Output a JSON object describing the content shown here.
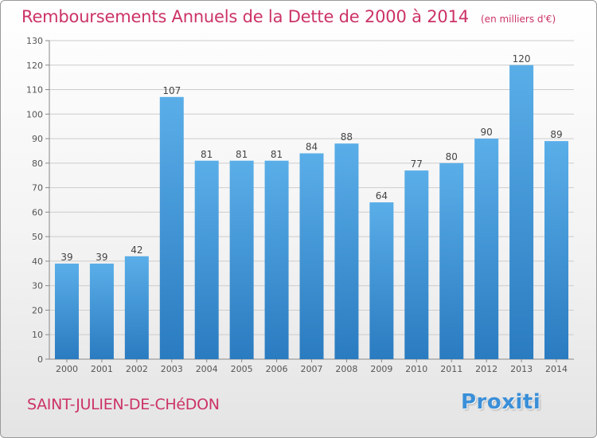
{
  "header": {
    "title": "Remboursements Annuels de la Dette de 2000 à 2014",
    "subtitle": "(en milliers d'€)"
  },
  "footer": {
    "location": "SAINT-JULIEN-DE-CHéDON",
    "brand": "Proxiti"
  },
  "colors": {
    "bar_top": "#5aaee8",
    "bar_bottom": "#2a7bc0",
    "title": "#cc3366",
    "grid": "#cccccc"
  },
  "chart_data": {
    "type": "bar",
    "title": "Remboursements Annuels de la Dette de 2000 à 2014",
    "subtitle": "(en milliers d'€)",
    "categories": [
      "2000",
      "2001",
      "2002",
      "2003",
      "2004",
      "2005",
      "2006",
      "2007",
      "2008",
      "2009",
      "2010",
      "2011",
      "2012",
      "2013",
      "2014"
    ],
    "values": [
      39,
      39,
      42,
      107,
      81,
      81,
      81,
      84,
      88,
      64,
      77,
      80,
      90,
      120,
      89
    ],
    "data_labels": [
      "39",
      "39",
      "42",
      "107",
      "81",
      "81",
      "81",
      "84",
      "88",
      "64",
      "77",
      "80",
      "90",
      "120",
      "89"
    ],
    "xlabel": "",
    "ylabel": "",
    "ylim": [
      0,
      130
    ],
    "yticks": [
      0,
      10,
      20,
      30,
      40,
      50,
      60,
      70,
      80,
      90,
      100,
      110,
      120,
      130
    ],
    "grid": true,
    "legend": "none"
  }
}
